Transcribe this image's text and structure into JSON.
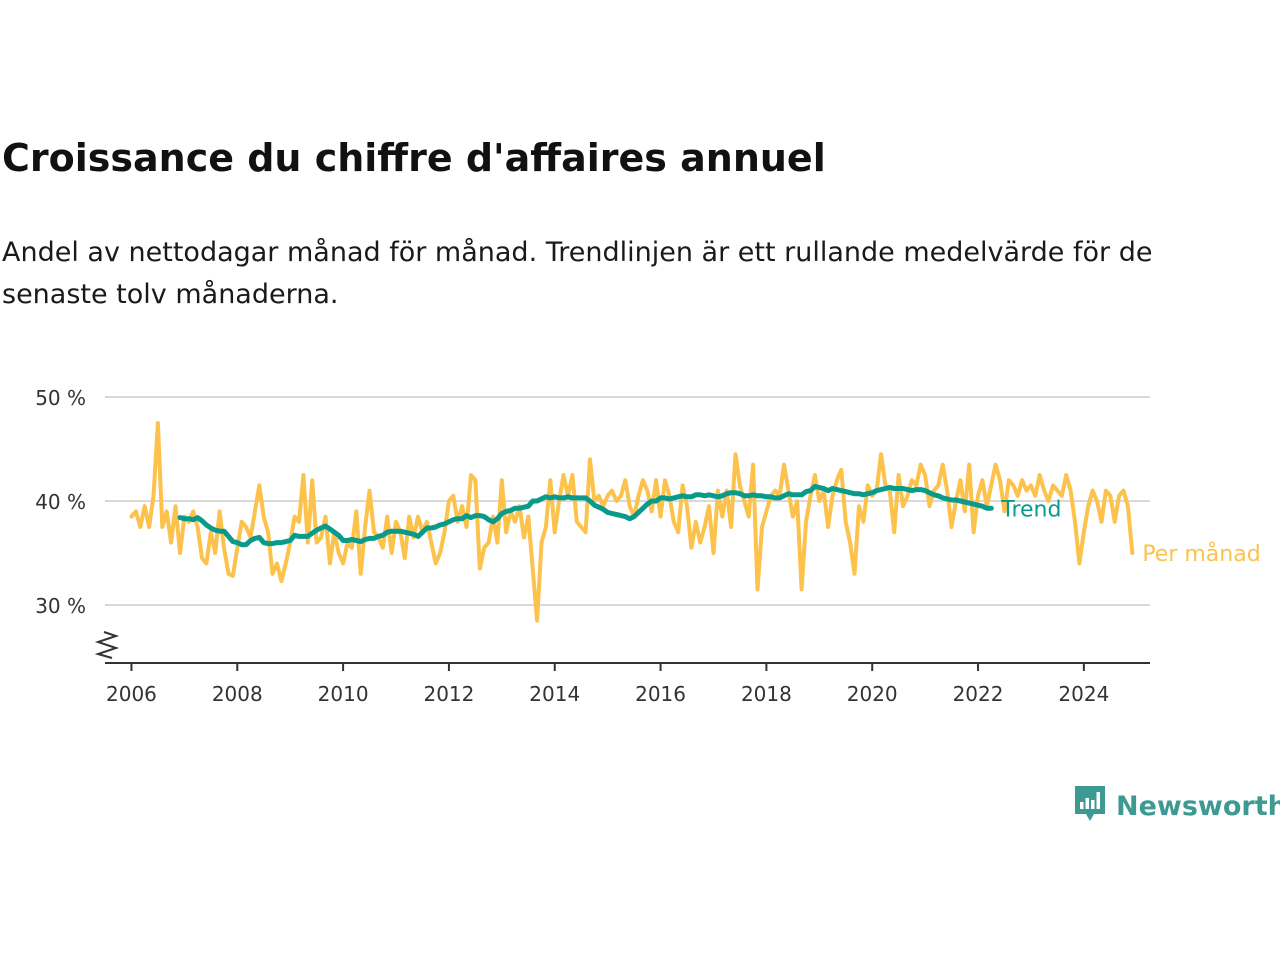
{
  "title": "Croissance du chiffre d'affaires annuel",
  "subtitle": "Andel av nettodagar månad för månad. Trendlinjen är ett rullande medelvärde för de senaste tolv månaderna.",
  "brand": {
    "name": "Newsworthy",
    "icon": "newsworthy-chart-icon",
    "color": "#3d9a92"
  },
  "chart_data": {
    "type": "line",
    "title": "Croissance du chiffre d'affaires annuel",
    "x_unit": "year (decimal, monthly data)",
    "xlim": [
      2005.5,
      2025.25
    ],
    "ylim": [
      25,
      50
    ],
    "y_axis_break": true,
    "y_ticks": [
      30,
      40,
      50
    ],
    "y_tick_labels": [
      "30 %",
      "40 %",
      "50 %"
    ],
    "x_ticks": [
      2006,
      2008,
      2010,
      2012,
      2014,
      2016,
      2018,
      2020,
      2022,
      2024
    ],
    "x_tick_labels": [
      "2006",
      "2008",
      "2010",
      "2012",
      "2014",
      "2016",
      "2018",
      "2020",
      "2022",
      "2024"
    ],
    "grid": "horizontal",
    "legend": "direct labels at line ends (right)",
    "series": [
      {
        "name": "Per månad",
        "color": "#fcc24c",
        "start": 2006.0,
        "step": 0.08333,
        "values": [
          38.5,
          39.0,
          37.5,
          39.5,
          37.5,
          40.5,
          47.5,
          37.5,
          39.0,
          36.0,
          39.5,
          35.0,
          38.5,
          38.0,
          39.0,
          37.5,
          34.5,
          34.0,
          37.0,
          35.0,
          39.0,
          35.5,
          33.0,
          32.8,
          35.5,
          38.0,
          37.5,
          36.5,
          39.0,
          41.5,
          38.5,
          37.0,
          33.0,
          34.0,
          32.3,
          34.0,
          36.0,
          38.5,
          38.0,
          42.5,
          36.0,
          42.0,
          36.0,
          36.5,
          38.5,
          34.0,
          37.0,
          35.0,
          34.0,
          36.0,
          35.5,
          39.0,
          33.0,
          37.5,
          41.0,
          37.0,
          36.5,
          35.5,
          38.5,
          35.0,
          38.0,
          37.0,
          34.5,
          38.5,
          36.5,
          38.5,
          37.0,
          38.0,
          36.0,
          34.0,
          35.0,
          37.0,
          40.0,
          40.5,
          38.0,
          39.5,
          37.5,
          42.5,
          42.0,
          33.5,
          35.5,
          36.0,
          38.5,
          36.0,
          42.0,
          37.0,
          39.0,
          38.0,
          39.5,
          36.5,
          38.5,
          33.5,
          28.5,
          36.0,
          37.5,
          42.0,
          37.0,
          40.0,
          42.5,
          40.5,
          42.5,
          38.0,
          37.5,
          37.0,
          44.0,
          40.0,
          40.5,
          39.5,
          40.5,
          41.0,
          40.0,
          40.5,
          42.0,
          39.5,
          38.5,
          40.5,
          42.0,
          41.0,
          39.0,
          42.0,
          38.5,
          42.0,
          40.5,
          38.0,
          37.0,
          41.5,
          39.5,
          35.5,
          38.0,
          36.0,
          37.5,
          39.5,
          35.0,
          41.0,
          38.5,
          41.0,
          37.5,
          44.5,
          41.5,
          40.0,
          38.5,
          43.5,
          31.5,
          37.5,
          39.0,
          40.5,
          41.0,
          40.5,
          43.5,
          41.0,
          38.5,
          40.0,
          31.5,
          38.0,
          40.5,
          42.5,
          40.0,
          41.0,
          37.5,
          40.5,
          42.0,
          43.0,
          38.0,
          36.0,
          33.0,
          39.5,
          38.0,
          41.5,
          40.5,
          41.0,
          44.5,
          41.5,
          41.0,
          37.0,
          42.5,
          39.5,
          40.5,
          42.0,
          41.5,
          43.5,
          42.5,
          39.5,
          41.0,
          41.5,
          43.5,
          41.0,
          37.5,
          40.0,
          42.0,
          39.0,
          43.5,
          37.0,
          40.5,
          42.0,
          39.5,
          41.5,
          43.5,
          42.0,
          39.0,
          42.0,
          41.5,
          40.5,
          42.0,
          41.0,
          41.5,
          40.5,
          42.5,
          41.0,
          40.0,
          41.5,
          41.0,
          40.5,
          42.5,
          41.0,
          38.0,
          34.0,
          37.0,
          39.5,
          41.0,
          40.0,
          38.0,
          41.0,
          40.5,
          38.0,
          40.5,
          41.0,
          39.5,
          35.0
        ]
      },
      {
        "name": "Trend",
        "color": "#0a9a8c",
        "start": 2006.917,
        "step": 0.08333,
        "values": [
          38.4,
          38.3,
          38.3,
          38.2,
          38.4,
          38.1,
          37.7,
          37.4,
          37.2,
          37.1,
          37.1,
          36.6,
          36.1,
          36.0,
          35.8,
          35.8,
          36.2,
          36.4,
          36.5,
          36.0,
          35.9,
          35.9,
          36.0,
          36.0,
          36.1,
          36.2,
          36.7,
          36.6,
          36.6,
          36.6,
          36.9,
          37.2,
          37.4,
          37.6,
          37.3,
          37.0,
          36.7,
          36.2,
          36.2,
          36.3,
          36.2,
          36.1,
          36.3,
          36.4,
          36.4,
          36.6,
          36.7,
          37.0,
          37.1,
          37.1,
          37.1,
          37.0,
          36.9,
          36.8,
          36.6,
          37.0,
          37.4,
          37.4,
          37.5,
          37.7,
          37.8,
          38.0,
          38.2,
          38.3,
          38.3,
          38.6,
          38.4,
          38.6,
          38.6,
          38.5,
          38.2,
          38.0,
          38.3,
          38.8,
          39.0,
          39.1,
          39.3,
          39.3,
          39.4,
          39.5,
          40.0,
          40.0,
          40.2,
          40.4,
          40.3,
          40.4,
          40.3,
          40.3,
          40.4,
          40.3,
          40.3,
          40.3,
          40.3,
          40.0,
          39.6,
          39.4,
          39.2,
          38.9,
          38.8,
          38.7,
          38.6,
          38.5,
          38.3,
          38.5,
          38.9,
          39.3,
          39.7,
          40.0,
          40.0,
          40.3,
          40.3,
          40.2,
          40.3,
          40.4,
          40.5,
          40.4,
          40.4,
          40.6,
          40.6,
          40.5,
          40.6,
          40.5,
          40.4,
          40.5,
          40.7,
          40.8,
          40.8,
          40.7,
          40.5,
          40.5,
          40.6,
          40.5,
          40.5,
          40.4,
          40.4,
          40.3,
          40.3,
          40.5,
          40.7,
          40.6,
          40.6,
          40.6,
          40.9,
          41.0,
          41.4,
          41.3,
          41.2,
          41.0,
          41.2,
          41.1,
          41.0,
          40.9,
          40.8,
          40.7,
          40.7,
          40.6,
          40.7,
          40.8,
          41.0,
          41.1,
          41.2,
          41.3,
          41.2,
          41.2,
          41.2,
          41.1,
          41.0,
          41.1,
          41.1,
          41.0,
          40.8,
          40.6,
          40.5,
          40.3,
          40.2,
          40.1,
          40.1,
          40.0,
          39.9,
          39.8,
          39.7,
          39.6,
          39.5,
          39.3,
          39.3
        ]
      }
    ]
  }
}
